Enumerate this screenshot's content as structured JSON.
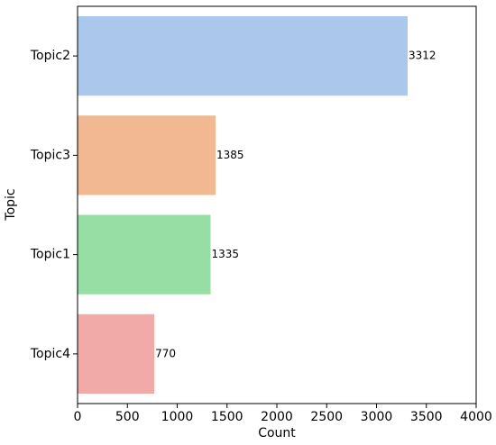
{
  "chart_data": {
    "type": "barh",
    "categories": [
      "Topic2",
      "Topic3",
      "Topic1",
      "Topic4"
    ],
    "values": [
      3312,
      1385,
      1335,
      770
    ],
    "colors": [
      "#abc8ec",
      "#f2b891",
      "#97dea5",
      "#f2aaa8"
    ],
    "xlim": [
      0,
      4000
    ],
    "xticks": [
      0,
      500,
      1000,
      1500,
      2000,
      2500,
      3000,
      3500,
      4000
    ],
    "x_label": "Count",
    "y_label": "Topic"
  }
}
